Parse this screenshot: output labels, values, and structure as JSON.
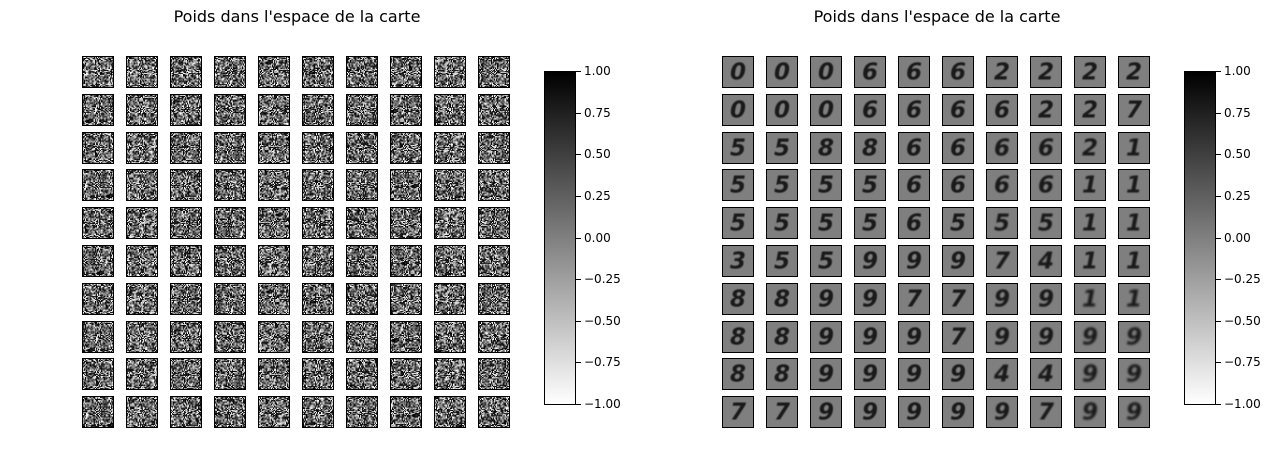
{
  "chart_data": [
    {
      "type": "heatmap",
      "title": "Poids dans l'espace de la carte",
      "grid_rows": 10,
      "grid_cols": 10,
      "cell_content": "random-noise",
      "colormap": "gray_r",
      "colorbar_range": [
        -1.0,
        1.0
      ],
      "colorbar_ticks": [
        "1.00",
        "0.75",
        "0.50",
        "0.25",
        "0.00",
        "−0.25",
        "−0.50",
        "−0.75",
        "−1.00"
      ],
      "colorbar_position": "right"
    },
    {
      "type": "heatmap",
      "title": "Poids dans l'espace de la carte",
      "grid_rows": 10,
      "grid_cols": 10,
      "cell_content": "digit-prototypes",
      "digit_map": [
        [
          "0",
          "0",
          "0",
          "6",
          "6",
          "6",
          "2",
          "2",
          "2",
          "2"
        ],
        [
          "0",
          "0",
          "0",
          "6",
          "6",
          "6",
          "6",
          "2",
          "2",
          "7"
        ],
        [
          "5",
          "5",
          "8",
          "8",
          "6",
          "6",
          "6",
          "6",
          "2",
          "1"
        ],
        [
          "5",
          "5",
          "5",
          "5",
          "6",
          "6",
          "6",
          "6",
          "1",
          "1"
        ],
        [
          "5",
          "5",
          "5",
          "5",
          "6",
          "5",
          "5",
          "5",
          "1",
          "1"
        ],
        [
          "3",
          "5",
          "5",
          "9",
          "9",
          "9",
          "7",
          "4",
          "1",
          "1"
        ],
        [
          "8",
          "8",
          "9",
          "9",
          "7",
          "7",
          "9",
          "9",
          "1",
          "1"
        ],
        [
          "8",
          "8",
          "9",
          "9",
          "9",
          "7",
          "9",
          "9",
          "9",
          "9"
        ],
        [
          "8",
          "8",
          "9",
          "9",
          "9",
          "9",
          "4",
          "4",
          "9",
          "9"
        ],
        [
          "7",
          "7",
          "9",
          "9",
          "9",
          "9",
          "9",
          "7",
          "9",
          "9"
        ]
      ],
      "colormap": "gray_r",
      "colorbar_range": [
        -1.0,
        1.0
      ],
      "colorbar_ticks": [
        "1.00",
        "0.75",
        "0.50",
        "0.25",
        "0.00",
        "−0.25",
        "−0.50",
        "−0.75",
        "−1.00"
      ],
      "colorbar_position": "right"
    }
  ]
}
